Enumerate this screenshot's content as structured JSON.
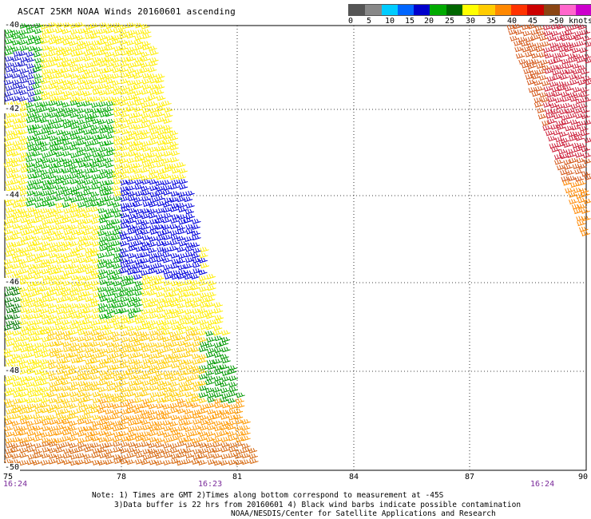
{
  "title": "ASCAT 25KM NOAA Winds 20160601 ascending",
  "legend": {
    "colors": [
      "#555555",
      "#888888",
      "#00ccff",
      "#0066ff",
      "#0000cc",
      "#00aa00",
      "#006600",
      "#ffff00",
      "#ffcc00",
      "#ff8800",
      "#ff3300",
      "#cc0000",
      "#8b4513",
      "#ff66cc",
      "#cc00cc",
      "#660099"
    ],
    "labels": [
      "0",
      "5",
      "10",
      "15",
      "20",
      "25",
      "30",
      "35",
      "40",
      "45",
      ">50 knots"
    ]
  },
  "map": {
    "lon_labels": [
      "75",
      "78",
      "81",
      "84",
      "87",
      "90"
    ],
    "lat_labels": [
      "-40",
      "-42",
      "-44",
      "-46",
      "-48",
      "-50"
    ],
    "time_labels": [
      "16:24",
      "16:23",
      "16:24"
    ]
  },
  "notes": {
    "line1": "Note: 1) Times are GMT 2)Times along bottom correspond to measurement at -45S",
    "line2": "3)Data buffer is 22 hrs from 20160601 4) Black wind barbs indicate possible contamination",
    "line3": "NOAA/NESDIS/Center for Satellite Applications and Research"
  }
}
